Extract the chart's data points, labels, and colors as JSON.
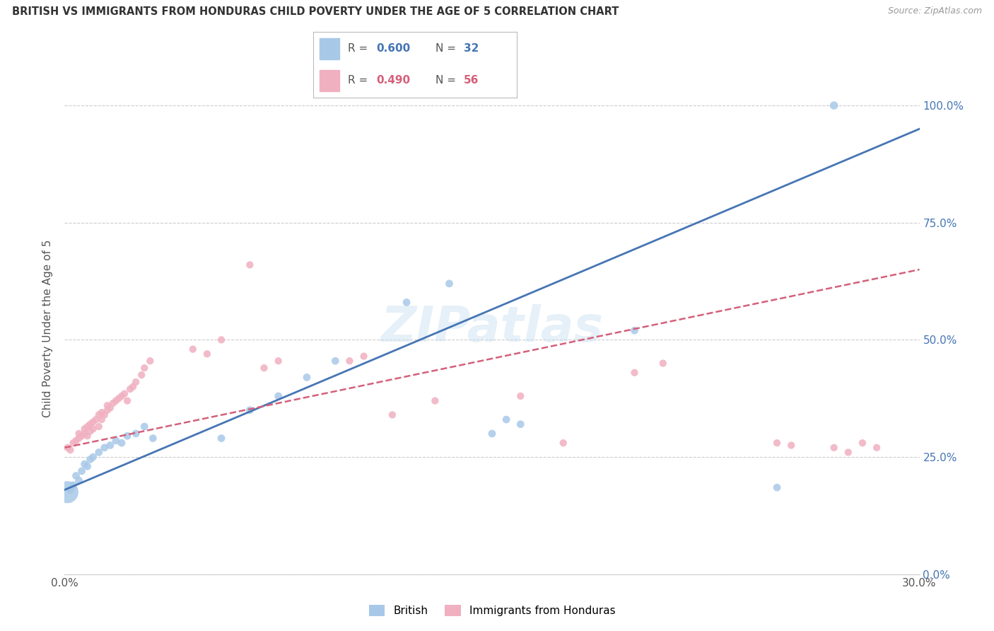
{
  "title": "BRITISH VS IMMIGRANTS FROM HONDURAS CHILD POVERTY UNDER THE AGE OF 5 CORRELATION CHART",
  "source": "Source: ZipAtlas.com",
  "ylabel": "Child Poverty Under the Age of 5",
  "xlim": [
    0.0,
    0.3
  ],
  "ylim": [
    0.0,
    1.05
  ],
  "british_R": 0.6,
  "british_N": 32,
  "honduras_R": 0.49,
  "honduras_N": 56,
  "british_color": "#a8c8e8",
  "honduras_color": "#f0b0c0",
  "british_line_color": "#4575b4",
  "honduras_line_color": "#d4607a",
  "watermark": "ZIPatlas",
  "british_x": [
    0.001,
    0.002,
    0.003,
    0.004,
    0.005,
    0.006,
    0.007,
    0.008,
    0.009,
    0.01,
    0.012,
    0.014,
    0.016,
    0.018,
    0.02,
    0.022,
    0.025,
    0.028,
    0.031,
    0.055,
    0.065,
    0.075,
    0.085,
    0.095,
    0.12,
    0.135,
    0.15,
    0.155,
    0.16,
    0.2,
    0.25,
    0.27
  ],
  "british_y": [
    0.175,
    0.18,
    0.19,
    0.21,
    0.2,
    0.22,
    0.235,
    0.23,
    0.245,
    0.25,
    0.26,
    0.27,
    0.275,
    0.285,
    0.28,
    0.295,
    0.3,
    0.315,
    0.29,
    0.29,
    0.35,
    0.38,
    0.42,
    0.455,
    0.58,
    0.62,
    0.3,
    0.33,
    0.32,
    0.52,
    0.185,
    1.0
  ],
  "british_sizes": [
    500,
    60,
    60,
    60,
    60,
    60,
    60,
    60,
    60,
    60,
    60,
    60,
    60,
    60,
    60,
    60,
    60,
    60,
    60,
    60,
    60,
    60,
    60,
    60,
    60,
    60,
    60,
    60,
    60,
    60,
    60,
    70
  ],
  "honduras_x": [
    0.001,
    0.002,
    0.003,
    0.004,
    0.005,
    0.005,
    0.006,
    0.007,
    0.007,
    0.008,
    0.008,
    0.009,
    0.009,
    0.01,
    0.01,
    0.011,
    0.012,
    0.012,
    0.013,
    0.013,
    0.014,
    0.015,
    0.015,
    0.016,
    0.017,
    0.018,
    0.019,
    0.02,
    0.021,
    0.022,
    0.023,
    0.024,
    0.025,
    0.027,
    0.028,
    0.03,
    0.045,
    0.05,
    0.055,
    0.065,
    0.07,
    0.075,
    0.1,
    0.105,
    0.115,
    0.13,
    0.16,
    0.175,
    0.2,
    0.21,
    0.25,
    0.255,
    0.27,
    0.275,
    0.28,
    0.285
  ],
  "honduras_y": [
    0.27,
    0.265,
    0.28,
    0.285,
    0.29,
    0.3,
    0.295,
    0.3,
    0.31,
    0.295,
    0.315,
    0.305,
    0.32,
    0.31,
    0.325,
    0.33,
    0.315,
    0.34,
    0.33,
    0.345,
    0.34,
    0.35,
    0.36,
    0.355,
    0.365,
    0.37,
    0.375,
    0.38,
    0.385,
    0.37,
    0.395,
    0.4,
    0.41,
    0.425,
    0.44,
    0.455,
    0.48,
    0.47,
    0.5,
    0.66,
    0.44,
    0.455,
    0.455,
    0.465,
    0.34,
    0.37,
    0.38,
    0.28,
    0.43,
    0.45,
    0.28,
    0.275,
    0.27,
    0.26,
    0.28,
    0.27
  ]
}
